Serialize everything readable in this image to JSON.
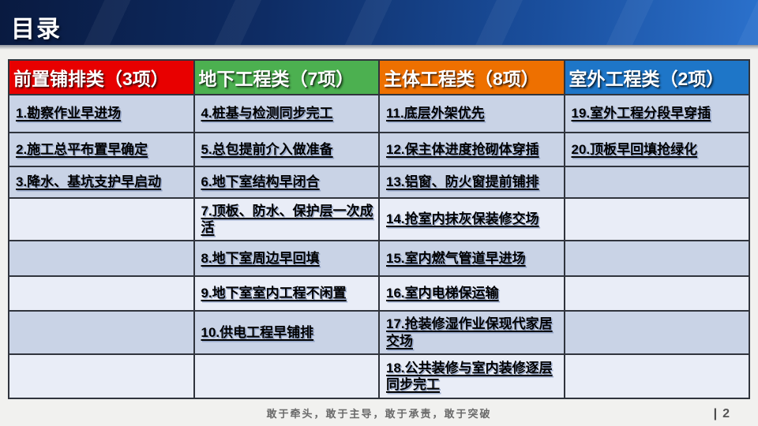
{
  "slide": {
    "title": "目录",
    "footer_motto": "敢于牵头，敢于主导，敢于承责，敢于突破",
    "page_separator": "|",
    "page_number": "2"
  },
  "table": {
    "columns": [
      {
        "label": "前置铺排类（3项）",
        "color": "#e80000"
      },
      {
        "label": "地下工程类（7项）",
        "color": "#4cb050"
      },
      {
        "label": "主体工程类（8项）",
        "color": "#ee7000"
      },
      {
        "label": "室外工程类（2项）",
        "color": "#1e76c8"
      }
    ],
    "rows": [
      [
        "1.勘察作业早进场",
        "4.桩基与检测同步完工",
        "11.底层外架优先",
        "19.室外工程分段早穿插"
      ],
      [
        "2.施工总平布置早确定",
        "5.总包提前介入做准备",
        "12.保主体进度抢砌体穿插",
        "20.顶板早回填抢绿化"
      ],
      [
        "3.降水、基坑支护早启动",
        "6.地下室结构早闭合",
        "13.铝窗、防火窗提前铺排",
        ""
      ],
      [
        "",
        "7.顶板、防水、保护层一次成活",
        "14.抢室内抹灰保装修交场",
        ""
      ],
      [
        "",
        "8.地下室周边早回填",
        "15.室内燃气管道早进场",
        ""
      ],
      [
        "",
        "9.地下室室内工程不闲置",
        "16.室内电梯保运输",
        ""
      ],
      [
        "",
        "10.供电工程早铺排",
        "17.抢装修湿作业保现代家居交场",
        ""
      ],
      [
        "",
        "",
        "18.公共装修与室内装修逐层同步完工",
        ""
      ]
    ]
  }
}
